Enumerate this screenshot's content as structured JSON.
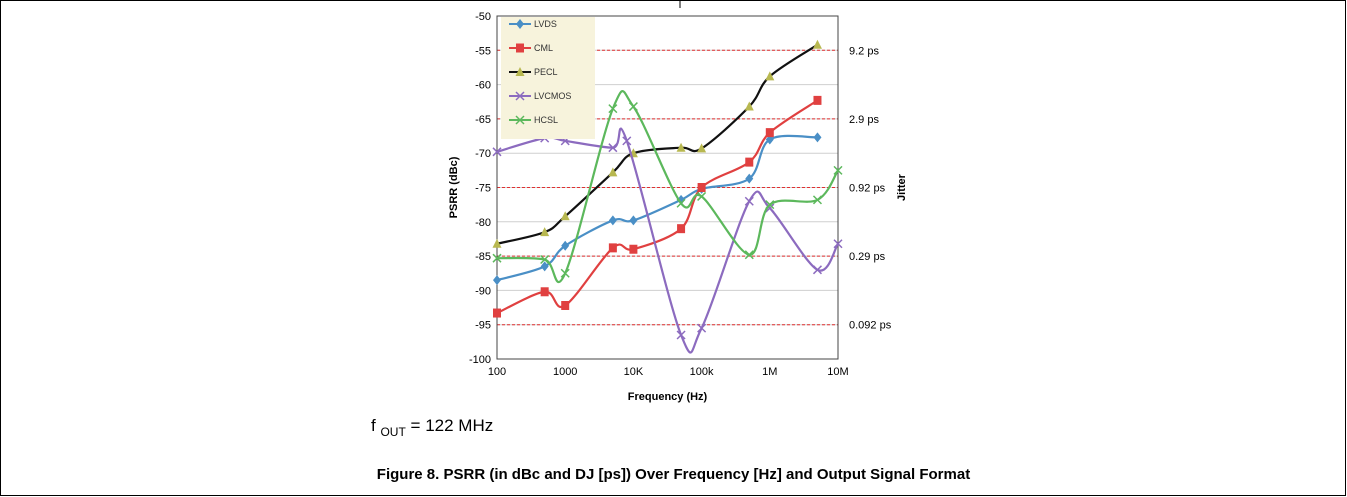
{
  "chart_data": {
    "type": "line",
    "xlabel": "Frequency (Hz)",
    "ylabel": "PSRR (dBc)",
    "y2label": "Jitter",
    "x_scale": "log",
    "xlim": [
      100,
      10000000
    ],
    "ylim": [
      -100,
      -50
    ],
    "x_ticks": [
      {
        "value": 100,
        "label": "100"
      },
      {
        "value": 1000,
        "label": "1000"
      },
      {
        "value": 10000,
        "label": "10K"
      },
      {
        "value": 100000,
        "label": "100k"
      },
      {
        "value": 1000000,
        "label": "1M"
      },
      {
        "value": 10000000,
        "label": "10M"
      }
    ],
    "y_ticks": [
      -50,
      -55,
      -60,
      -65,
      -70,
      -75,
      -80,
      -85,
      -90,
      -95,
      -100
    ],
    "grid": true,
    "legend_position": "top-left",
    "jitter_levels": [
      {
        "y": -55,
        "label": "9.2 ps"
      },
      {
        "y": -65,
        "label": "2.9 ps"
      },
      {
        "y": -75,
        "label": "0.92 ps"
      },
      {
        "y": -85,
        "label": "0.29 ps"
      },
      {
        "y": -95,
        "label": "0.092 ps"
      }
    ],
    "series": [
      {
        "name": "LVDS",
        "color": "#4a8fc6",
        "marker": "diamond",
        "x": [
          100,
          500,
          1000,
          5000,
          10000,
          50000,
          100000,
          500000,
          1000000,
          5000000
        ],
        "y": [
          -88.5,
          -86.5,
          -83.5,
          -79.8,
          -79.8,
          -76.8,
          -75.2,
          -73.7,
          -68.0,
          -67.7
        ]
      },
      {
        "name": "CML",
        "color": "#e04040",
        "marker": "square",
        "x": [
          100,
          500,
          1000,
          5000,
          10000,
          50000,
          100000,
          500000,
          1000000,
          5000000
        ],
        "y": [
          -93.3,
          -90.2,
          -92.2,
          -83.8,
          -84.0,
          -81.0,
          -75.0,
          -71.3,
          -67.0,
          -62.3
        ]
      },
      {
        "name": "PECL",
        "color": "#111111",
        "marker": "triangle",
        "x": [
          100,
          500,
          1000,
          5000,
          10000,
          50000,
          100000,
          500000,
          1000000,
          5000000
        ],
        "y": [
          -83.2,
          -81.5,
          -79.2,
          -72.8,
          -70.0,
          -69.2,
          -69.3,
          -63.2,
          -58.8,
          -54.2
        ]
      },
      {
        "name": "LVCMOS",
        "color": "#8c6bbf",
        "marker": "x",
        "x": [
          100,
          500,
          1000,
          5000,
          8000,
          50000,
          100000,
          500000,
          1000000,
          5000000,
          10000000
        ],
        "y": [
          -69.8,
          -67.8,
          -68.2,
          -69.2,
          -68.2,
          -96.5,
          -95.5,
          -77.0,
          -78.0,
          -87.0,
          -83.2
        ]
      },
      {
        "name": "HCSL",
        "color": "#5cb85c",
        "marker": "x",
        "x": [
          100,
          500,
          1000,
          5000,
          10000,
          50000,
          100000,
          500000,
          1000000,
          5000000,
          10000000
        ],
        "y": [
          -85.3,
          -85.5,
          -87.5,
          -63.5,
          -63.2,
          -77.3,
          -76.3,
          -84.8,
          -77.5,
          -76.8,
          -72.5
        ]
      }
    ]
  },
  "fout": {
    "prefix": "f",
    "sub": "OUT",
    "value": "= 122 MHz"
  },
  "caption": "Figure 8. PSRR (in dBc and DJ [ps]) Over Frequency [Hz] and Output Signal Format"
}
